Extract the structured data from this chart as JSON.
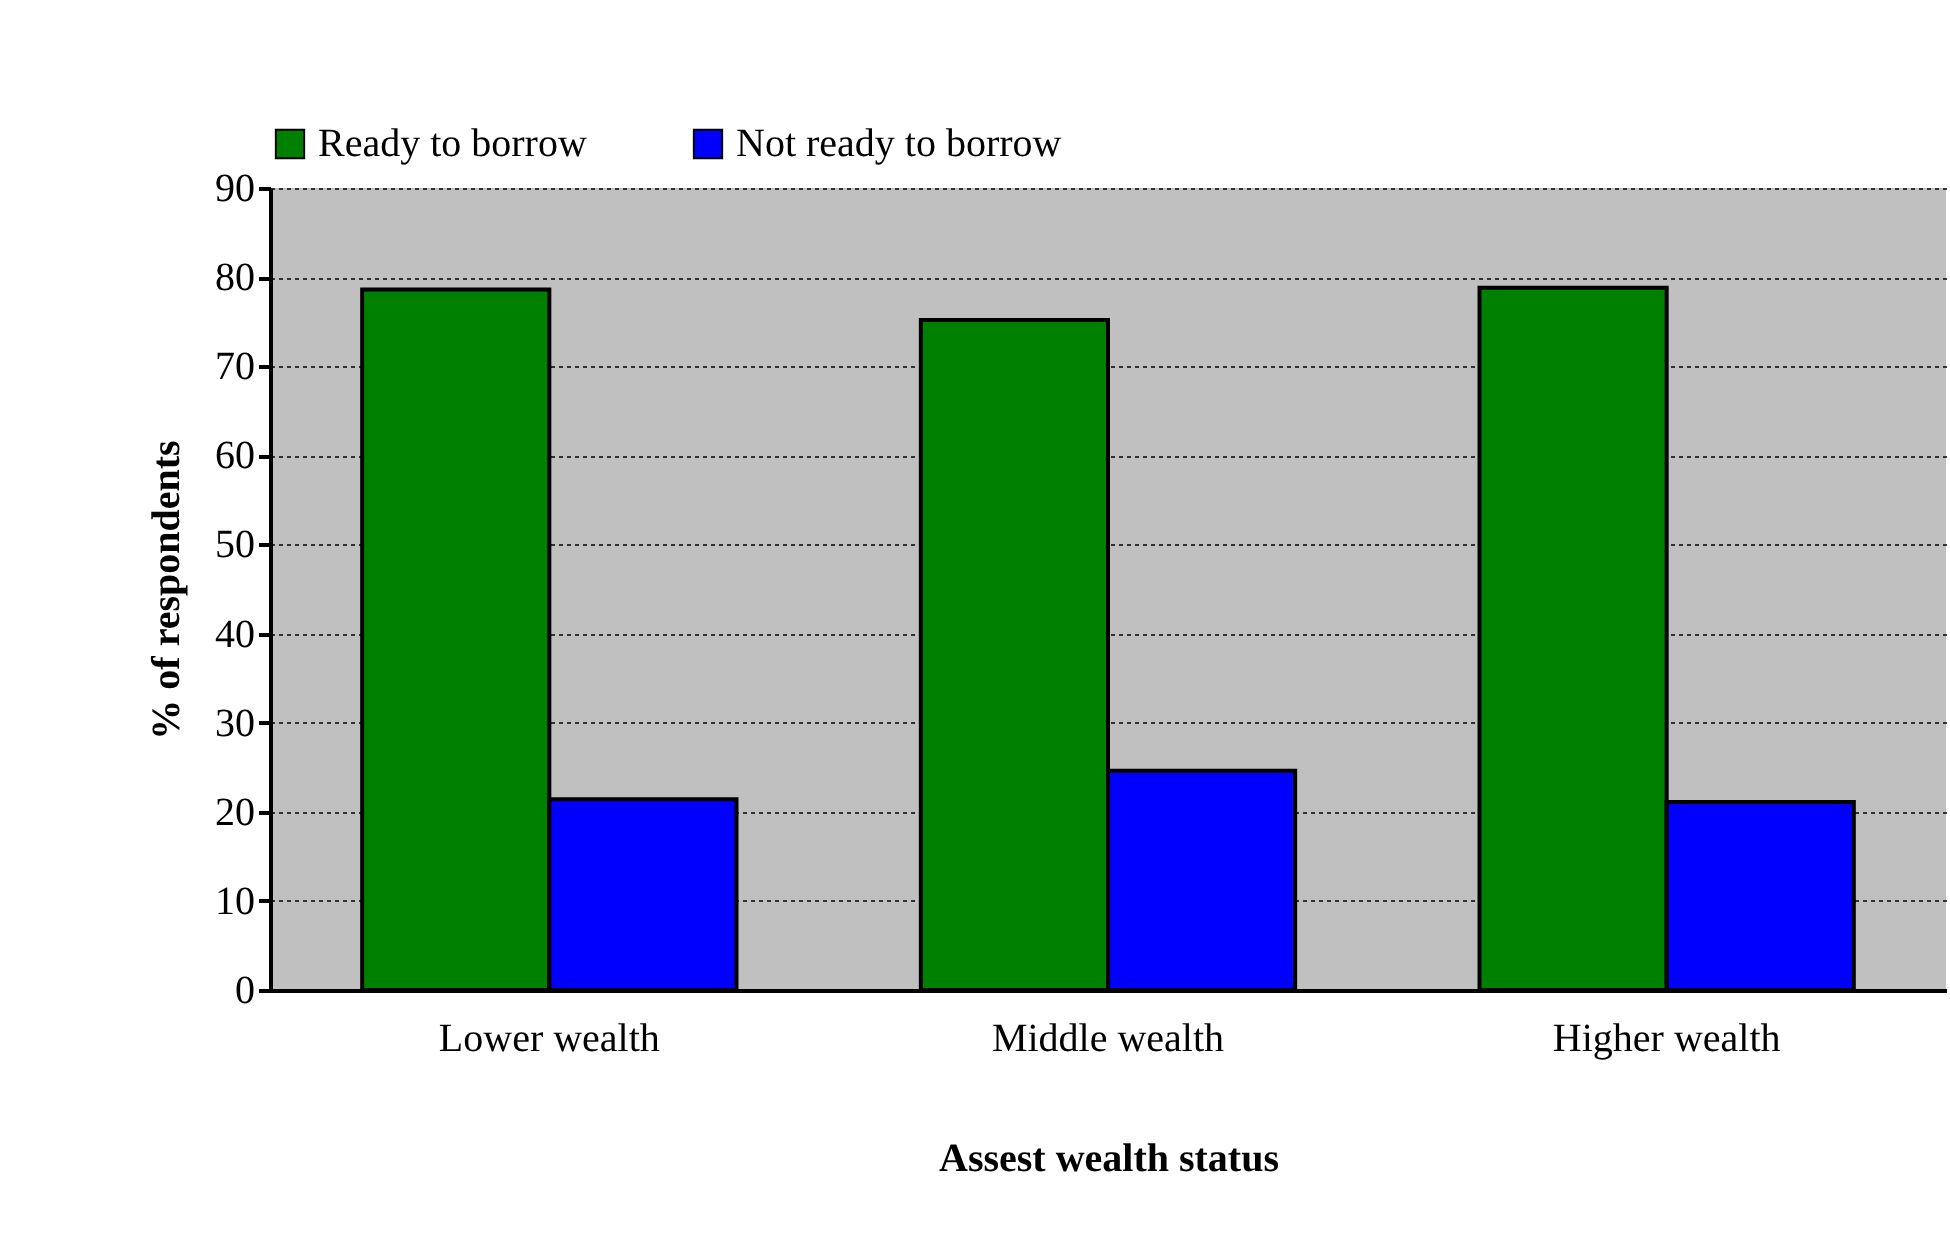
{
  "chart_data": {
    "type": "bar",
    "xlabel": "Assest wealth status",
    "ylabel": "% of respondents",
    "categories": [
      "Lower wealth",
      "Middle wealth",
      "Higher wealth"
    ],
    "series": [
      {
        "name": "Ready to borrow",
        "color": "#008000",
        "values": [
          78.6,
          75.2,
          78.8
        ]
      },
      {
        "name": "Not ready to borrow",
        "color": "#0000ff",
        "values": [
          21.4,
          24.6,
          21.1
        ]
      }
    ],
    "ylim": [
      0,
      90
    ],
    "yticks": [
      0,
      10,
      20,
      30,
      40,
      50,
      60,
      70,
      80,
      90
    ],
    "grid": "y",
    "legend": "top"
  }
}
